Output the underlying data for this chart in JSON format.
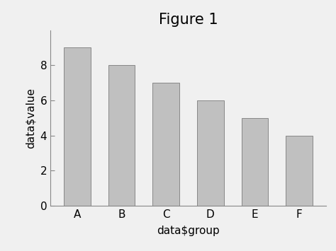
{
  "categories": [
    "A",
    "B",
    "C",
    "D",
    "E",
    "F"
  ],
  "values": [
    9,
    8,
    7,
    6,
    5,
    4
  ],
  "bar_color": "#c0c0c0",
  "bar_edgecolor": "#888888",
  "title": "Figure 1",
  "title_fontsize": 15,
  "xlabel": "data$group",
  "ylabel": "data$value",
  "xlabel_fontsize": 11,
  "ylabel_fontsize": 11,
  "tick_fontsize": 11,
  "ylim": [
    0,
    10
  ],
  "yticks": [
    0,
    2,
    4,
    6,
    8
  ],
  "background_color": "#f0f0f0",
  "axes_background_color": "#f0f0f0",
  "bar_width": 0.6,
  "spine_color": "#888888"
}
